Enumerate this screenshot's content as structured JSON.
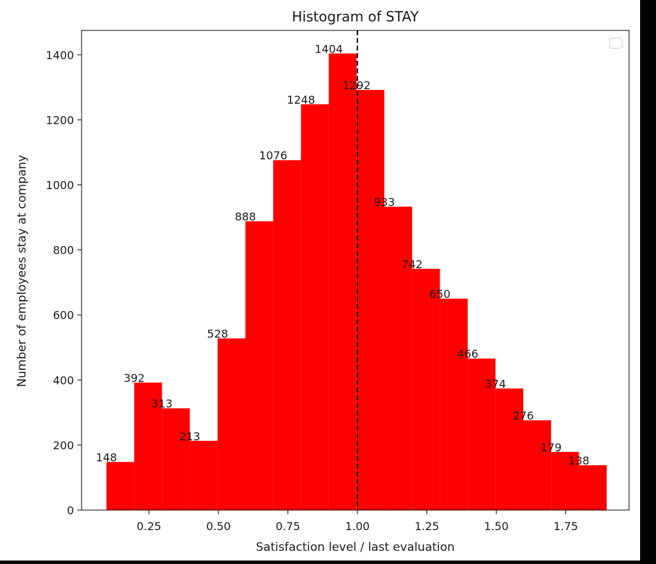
{
  "chart_data": {
    "type": "bar",
    "title": "Histogram of STAY",
    "xlabel": "Satisfaction level / last evaluation",
    "ylabel": "Number of employees stay at company",
    "xlim": [
      0.0075,
      1.9775
    ],
    "ylim": [
      0,
      1475
    ],
    "xticks": [
      0.25,
      0.5,
      0.75,
      1.0,
      1.25,
      1.5,
      1.75
    ],
    "xtick_labels": [
      "0.25",
      "0.50",
      "0.75",
      "1.00",
      "1.25",
      "1.50",
      "1.75"
    ],
    "yticks": [
      0,
      200,
      400,
      600,
      800,
      1000,
      1200,
      1400
    ],
    "ytick_labels": [
      "0",
      "200",
      "400",
      "600",
      "800",
      "1000",
      "1200",
      "1400"
    ],
    "bin_edges": [
      0.097,
      0.197,
      0.297,
      0.397,
      0.497,
      0.597,
      0.697,
      0.797,
      0.897,
      0.997,
      1.097,
      1.197,
      1.297,
      1.397,
      1.497,
      1.597,
      1.697,
      1.797,
      1.897
    ],
    "values": [
      148,
      392,
      313,
      213,
      528,
      888,
      1076,
      1248,
      1404,
      1292,
      933,
      742,
      650,
      466,
      374,
      276,
      179,
      138
    ],
    "bar_color": "#ff0000",
    "reference_line": {
      "x": 1.0,
      "style": "dashed",
      "color": "#000000"
    },
    "legend": {
      "placement": "top-right",
      "entries": []
    },
    "grid": false
  }
}
